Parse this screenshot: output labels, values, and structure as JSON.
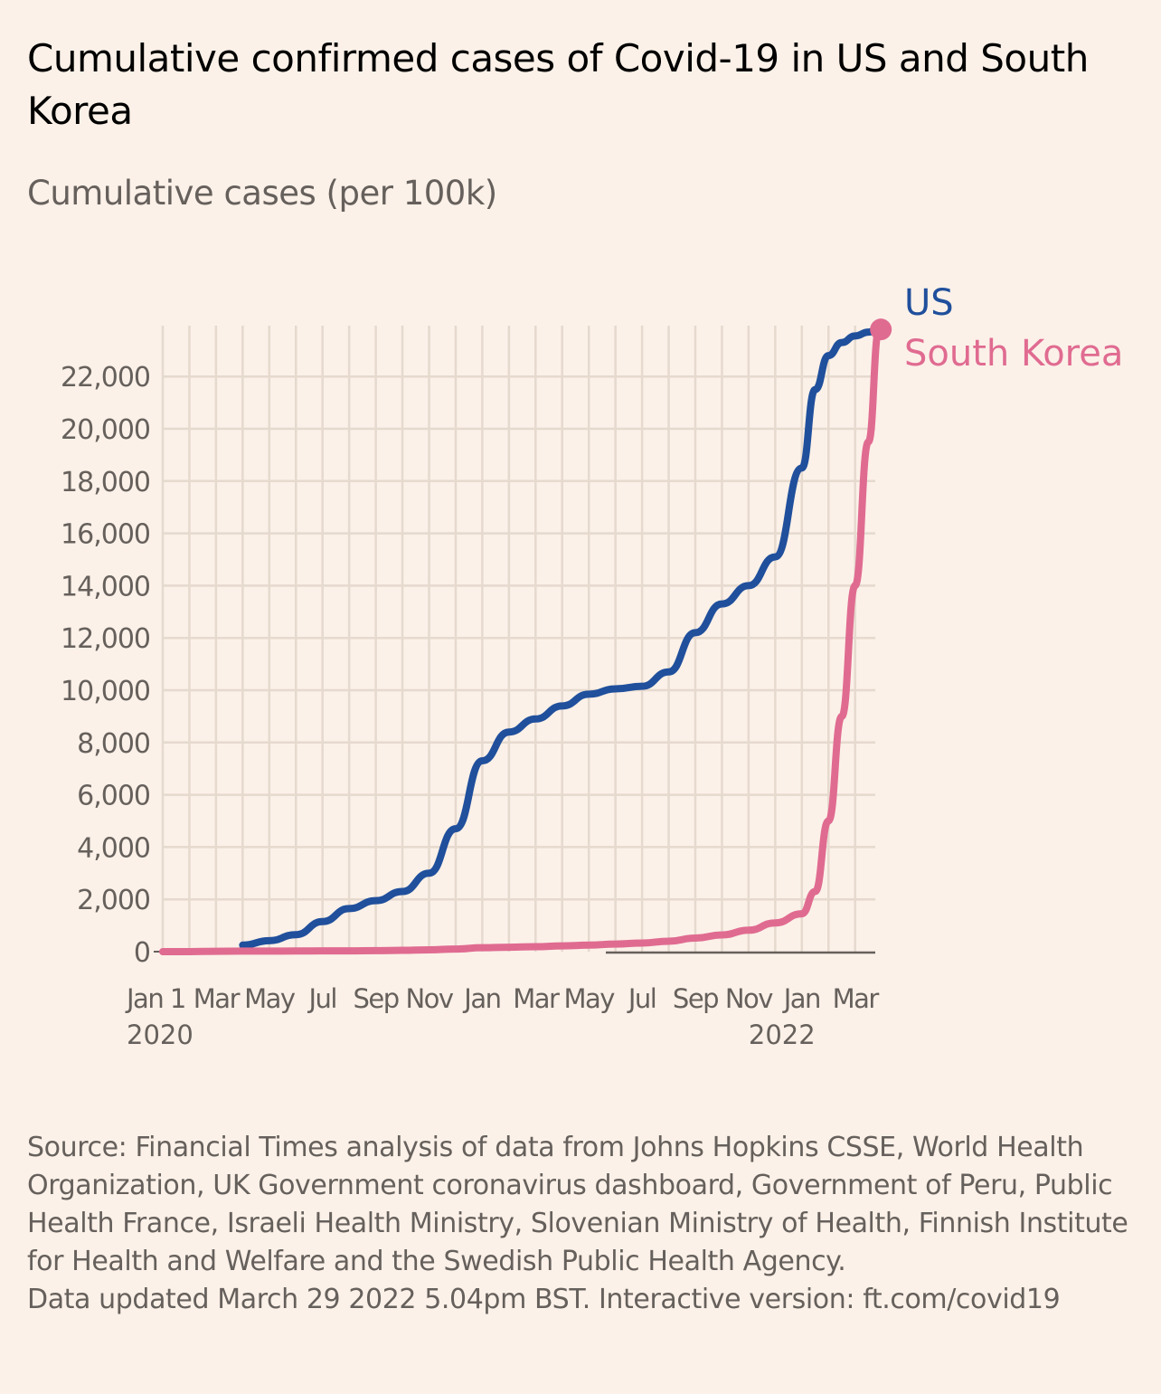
{
  "title": "Cumulative confirmed cases of Covid-19 in US and South Korea",
  "subtitle": "Cumulative cases (per 100k)",
  "footer": {
    "source": "Source: Financial Times analysis of data from Johns Hopkins CSSE, World Health Organization, UK Government coronavirus dashboard, Government of Peru, Public Health France, Israeli Health Ministry, Slovenian Ministry of Health, Finnish Institute for Health and Welfare and the Swedish Public Health Agency.",
    "updated": "Data updated March 29 2022 5.04pm BST. Interactive version: ft.com/covid19"
  },
  "colors": {
    "background": "#fbf1e8",
    "grid": "#e6d9ce",
    "axis": "#66605c",
    "us": "#204f9c",
    "south_korea": "#e06b91"
  },
  "chart_data": {
    "type": "line",
    "title": "Cumulative confirmed cases of Covid-19 in US and South Korea",
    "ylabel": "Cumulative cases (per 100k)",
    "xlabel": "",
    "ylim": [
      0,
      24000
    ],
    "yticks": [
      0,
      2000,
      4000,
      6000,
      8000,
      10000,
      12000,
      14000,
      16000,
      18000,
      20000,
      22000
    ],
    "ytick_labels": [
      "0",
      "2,000",
      "4,000",
      "6,000",
      "8,000",
      "10,000",
      "12,000",
      "14,000",
      "16,000",
      "18,000",
      "20,000",
      "22,000"
    ],
    "xlim": [
      "2020-01-01",
      "2022-03-29"
    ],
    "xticks": [
      {
        "label": "Jan 1",
        "sub": "2020",
        "month": 0
      },
      {
        "label": "Mar",
        "sub": "",
        "month": 2
      },
      {
        "label": "May",
        "sub": "",
        "month": 4
      },
      {
        "label": "Jul",
        "sub": "",
        "month": 6
      },
      {
        "label": "Sep",
        "sub": "",
        "month": 8
      },
      {
        "label": "Nov",
        "sub": "",
        "month": 10
      },
      {
        "label": "Jan",
        "sub": "",
        "month": 12
      },
      {
        "label": "Mar",
        "sub": "",
        "month": 14
      },
      {
        "label": "May",
        "sub": "",
        "month": 16
      },
      {
        "label": "Jul",
        "sub": "",
        "month": 18
      },
      {
        "label": "Sep",
        "sub": "",
        "month": 20
      },
      {
        "label": "Nov",
        "sub": "",
        "month": 22
      },
      {
        "label": "Jan",
        "sub": "2022",
        "month": 24
      },
      {
        "label": "Mar",
        "sub": "",
        "month": 26
      }
    ],
    "grid": true,
    "legend": "direct labels at line ends (top-right)",
    "x_months": [
      0,
      1,
      2,
      3,
      4,
      5,
      6,
      7,
      8,
      9,
      10,
      11,
      12,
      13,
      14,
      15,
      16,
      17,
      18,
      19,
      20,
      21,
      22,
      23,
      24,
      24.5,
      25,
      25.5,
      26,
      26.5,
      26.9
    ],
    "series": [
      {
        "name": "US",
        "label": "US",
        "values": [
          0,
          0,
          10,
          250,
          420,
          650,
          1150,
          1650,
          1950,
          2300,
          3000,
          4700,
          7300,
          8400,
          8900,
          9400,
          9850,
          10050,
          10150,
          10700,
          12200,
          13300,
          14000,
          15100,
          18500,
          21500,
          22800,
          23300,
          23550,
          23700,
          23800
        ]
      },
      {
        "name": "South Korea",
        "label": "South Korea",
        "values": [
          0,
          0,
          15,
          20,
          20,
          25,
          30,
          30,
          40,
          50,
          70,
          100,
          150,
          170,
          190,
          220,
          250,
          290,
          330,
          400,
          520,
          640,
          820,
          1100,
          1450,
          2300,
          5000,
          9000,
          14000,
          19500,
          23800
        ]
      }
    ]
  }
}
